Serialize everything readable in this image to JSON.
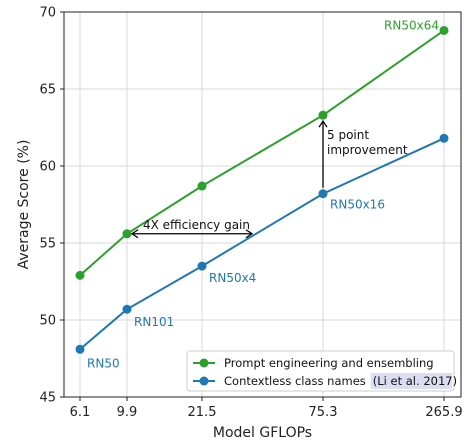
{
  "chart_data": {
    "type": "line",
    "xlabel": "Model GFLOPs",
    "ylabel": "Average Score (%)",
    "x_categories": [
      "6.1",
      "9.9",
      "21.5",
      "75.3",
      "265.9"
    ],
    "ylim": [
      45,
      70
    ],
    "yticks": [
      45,
      50,
      55,
      60,
      65,
      70
    ],
    "grid": true,
    "legend_position": "bottom-right",
    "series": [
      {
        "name": "Prompt engineering and ensembling",
        "color": "#2ca02c",
        "values": [
          52.9,
          55.6,
          58.7,
          63.3,
          68.8
        ]
      },
      {
        "name": "Contextless class names",
        "name_suffix": "(Li et al. 2017)",
        "color": "#1f77b4",
        "values": [
          48.1,
          50.7,
          53.5,
          58.2,
          61.8
        ]
      }
    ],
    "point_labels": [
      {
        "text": "RN50",
        "series": 1,
        "index": 0
      },
      {
        "text": "RN101",
        "series": 1,
        "index": 1
      },
      {
        "text": "RN50x4",
        "series": 1,
        "index": 2
      },
      {
        "text": "RN50x16",
        "series": 1,
        "index": 3
      },
      {
        "text": "RN50x64",
        "series": 0,
        "index": 4
      }
    ],
    "annotations": {
      "efficiency": "4X efficiency gain",
      "improvement_line1": "5 point",
      "improvement_line2": "improvement"
    }
  }
}
